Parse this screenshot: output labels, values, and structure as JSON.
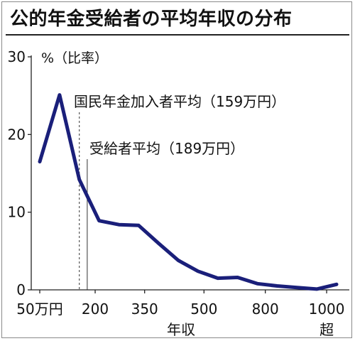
{
  "title": "公的年金受給者の平均年収の分布",
  "chart_data": {
    "type": "line",
    "title": "公的年金受給者の平均年収の分布",
    "ylabel": "%（比率）",
    "xlabel": "年収",
    "x_tick_labels": [
      "50万円",
      "200",
      "350",
      "500",
      "800",
      "1000"
    ],
    "x_last_sublabel": "超",
    "y_ticks": [
      0,
      10,
      20,
      30
    ],
    "ylim": [
      0,
      30
    ],
    "grid": false,
    "series": [
      {
        "color": "#1a1f7a",
        "values": [
          16.5,
          25.1,
          14.2,
          8.9,
          8.4,
          8.3,
          6.0,
          3.8,
          2.4,
          1.5,
          1.6,
          0.8,
          0.5,
          0.3,
          0.1,
          0.7
        ]
      }
    ],
    "annotations": [
      {
        "label": "国民年金加入者平均（159万円）",
        "value": 159,
        "line_style": "dashed"
      },
      {
        "label": "受給者平均（189万円）",
        "value": 189,
        "line_style": "solid"
      }
    ]
  }
}
